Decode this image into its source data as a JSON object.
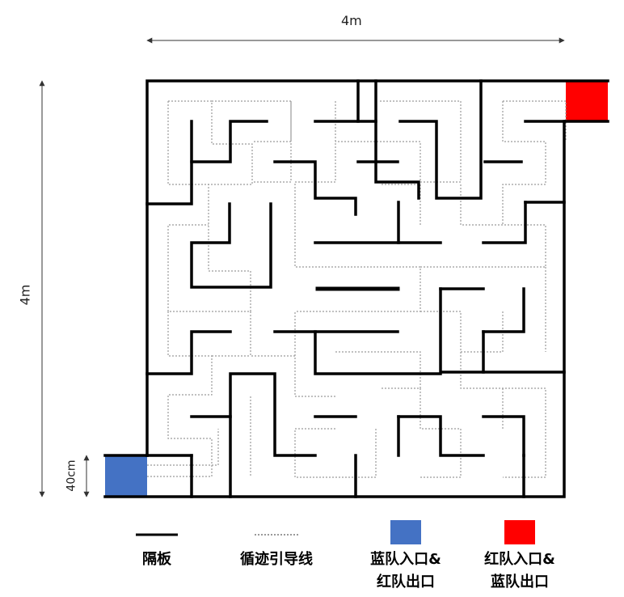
{
  "dimensions": {
    "width_label": "4m",
    "height_label": "4m",
    "entrance_size_label": "40cm"
  },
  "legend": {
    "wall_label": "隔板",
    "guide_line_label": "循迹引导线",
    "blue_zone_label_line1": "蓝队入口&",
    "blue_zone_label_line2": "红队出口",
    "red_zone_label_line1": "红队入口&",
    "red_zone_label_line2": "蓝队出口"
  },
  "colors": {
    "wall": "#000000",
    "guide": "#9a9a9a",
    "blue_zone": "#4472c4",
    "red_zone": "#ff0000"
  }
}
